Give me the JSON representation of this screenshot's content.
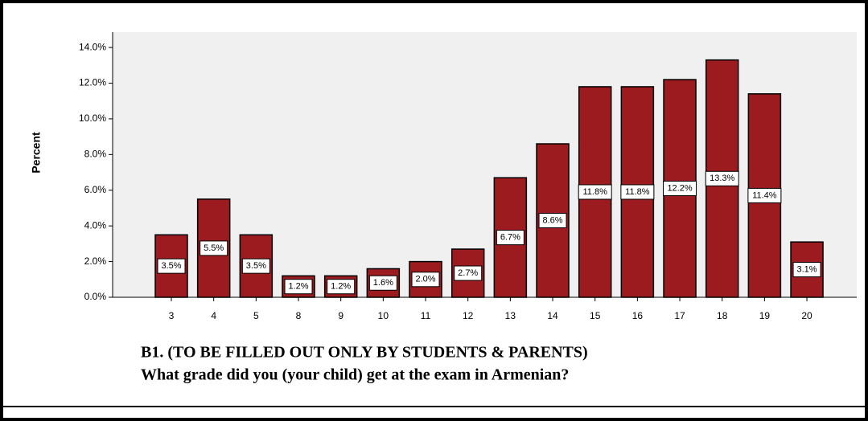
{
  "chart_data": {
    "type": "bar",
    "title": [
      "B1. (TO BE FILLED OUT ONLY BY STUDENTS & PARENTS)",
      "What grade did you (your child) get at the exam in Armenian?"
    ],
    "y_label": "Percent",
    "categories": [
      "3",
      "4",
      "5",
      "8",
      "9",
      "10",
      "11",
      "12",
      "13",
      "14",
      "15",
      "16",
      "17",
      "18",
      "19",
      "20"
    ],
    "values": [
      3.5,
      5.5,
      3.5,
      1.2,
      1.2,
      1.6,
      2.0,
      2.7,
      6.7,
      8.6,
      11.8,
      11.8,
      12.2,
      13.3,
      11.4,
      3.1
    ],
    "value_labels": [
      "3.5%",
      "5.5%",
      "3.5%",
      "1.2%",
      "1.2%",
      "1.6%",
      "2.0%",
      "2.7%",
      "6.7%",
      "8.6%",
      "11.8%",
      "11.8%",
      "12.2%",
      "13.3%",
      "11.4%",
      "3.1%"
    ],
    "color": "#9b1b1f",
    "ylim": [
      0,
      14.86
    ],
    "yticks": [
      {
        "value": 0,
        "label": "0.0%"
      },
      {
        "value": 2,
        "label": "2.0%"
      },
      {
        "value": 4,
        "label": "4.0%"
      },
      {
        "value": 6,
        "label": "6.0%"
      },
      {
        "value": 8,
        "label": "8.0%"
      },
      {
        "value": 10,
        "label": "10.0%"
      },
      {
        "value": 12,
        "label": "12.0%"
      },
      {
        "value": 14,
        "label": "14.0%"
      }
    ]
  }
}
